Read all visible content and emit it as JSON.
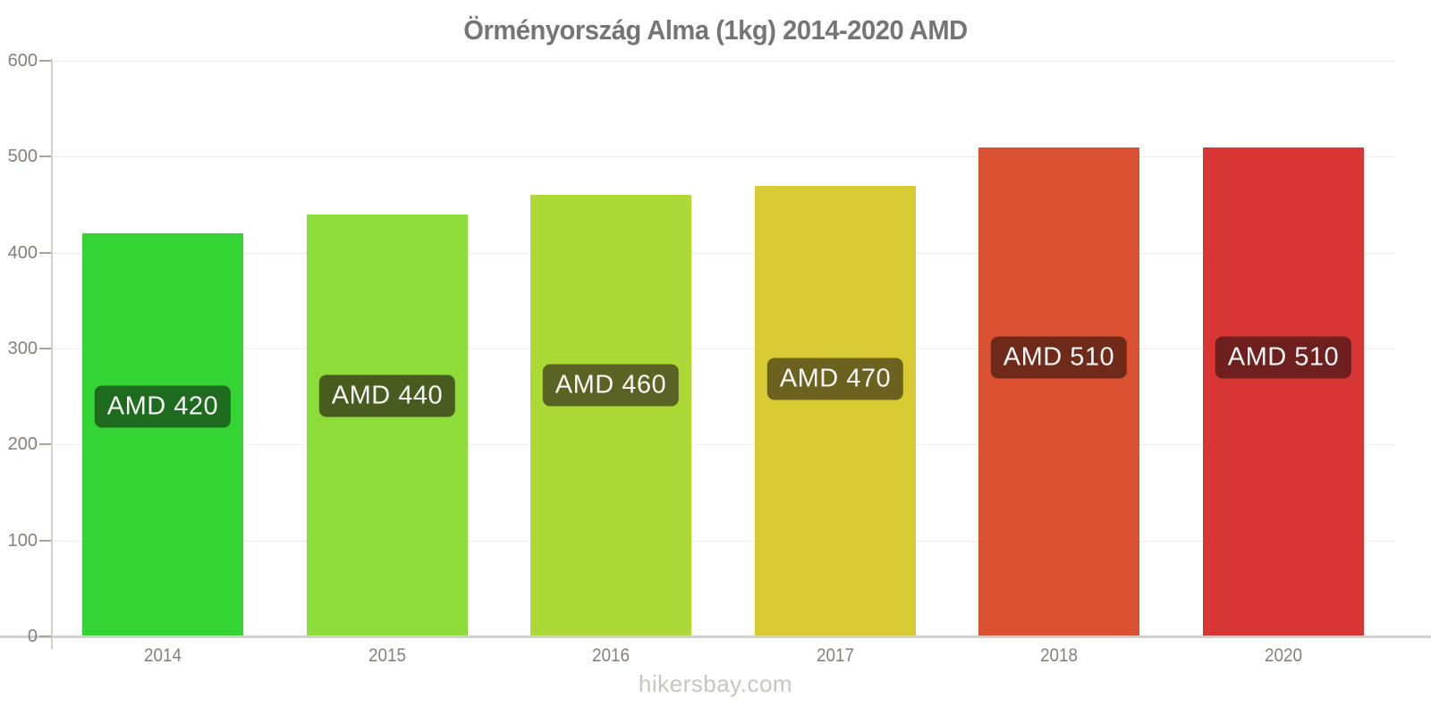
{
  "header": {
    "title": "Örményország Alma (1kg) 2014-2020 AMD"
  },
  "footer": {
    "text": "hikersbay.com"
  },
  "chart_data": {
    "type": "bar",
    "title": "Örményország Alma (1kg) 2014-2020 AMD",
    "categories": [
      "2014",
      "2015",
      "2016",
      "2017",
      "2018",
      "2020"
    ],
    "values": [
      420,
      440,
      460,
      470,
      510,
      510
    ],
    "bar_labels": [
      "AMD 420",
      "AMD 440",
      "AMD 460",
      "AMD 470",
      "AMD 510",
      "AMD 510"
    ],
    "bar_colors": [
      "#33d433",
      "#8edc3a",
      "#acd936",
      "#d8ca32",
      "#da5232",
      "#d83535"
    ],
    "bar_label_bg_colors": [
      "#1e6a1e",
      "#485c1f",
      "#5a6323",
      "#6c6220",
      "#6f2a19",
      "#701f1f"
    ],
    "bar_label_text_color": "#f6f6f6",
    "currency": "AMD",
    "xlabel": "",
    "ylabel": "",
    "ylim": [
      0,
      600
    ],
    "yticks": [
      0,
      100,
      200,
      300,
      400,
      500,
      600
    ],
    "grid": true,
    "legend": "none",
    "colors": {
      "axis_line": "#d3d0cc",
      "gridline": "#efedea",
      "tick": "#aaa49d",
      "tick_label": "#87807a",
      "title": "#757575",
      "footer": "#c9c5bf",
      "background": "#ffffff"
    }
  }
}
